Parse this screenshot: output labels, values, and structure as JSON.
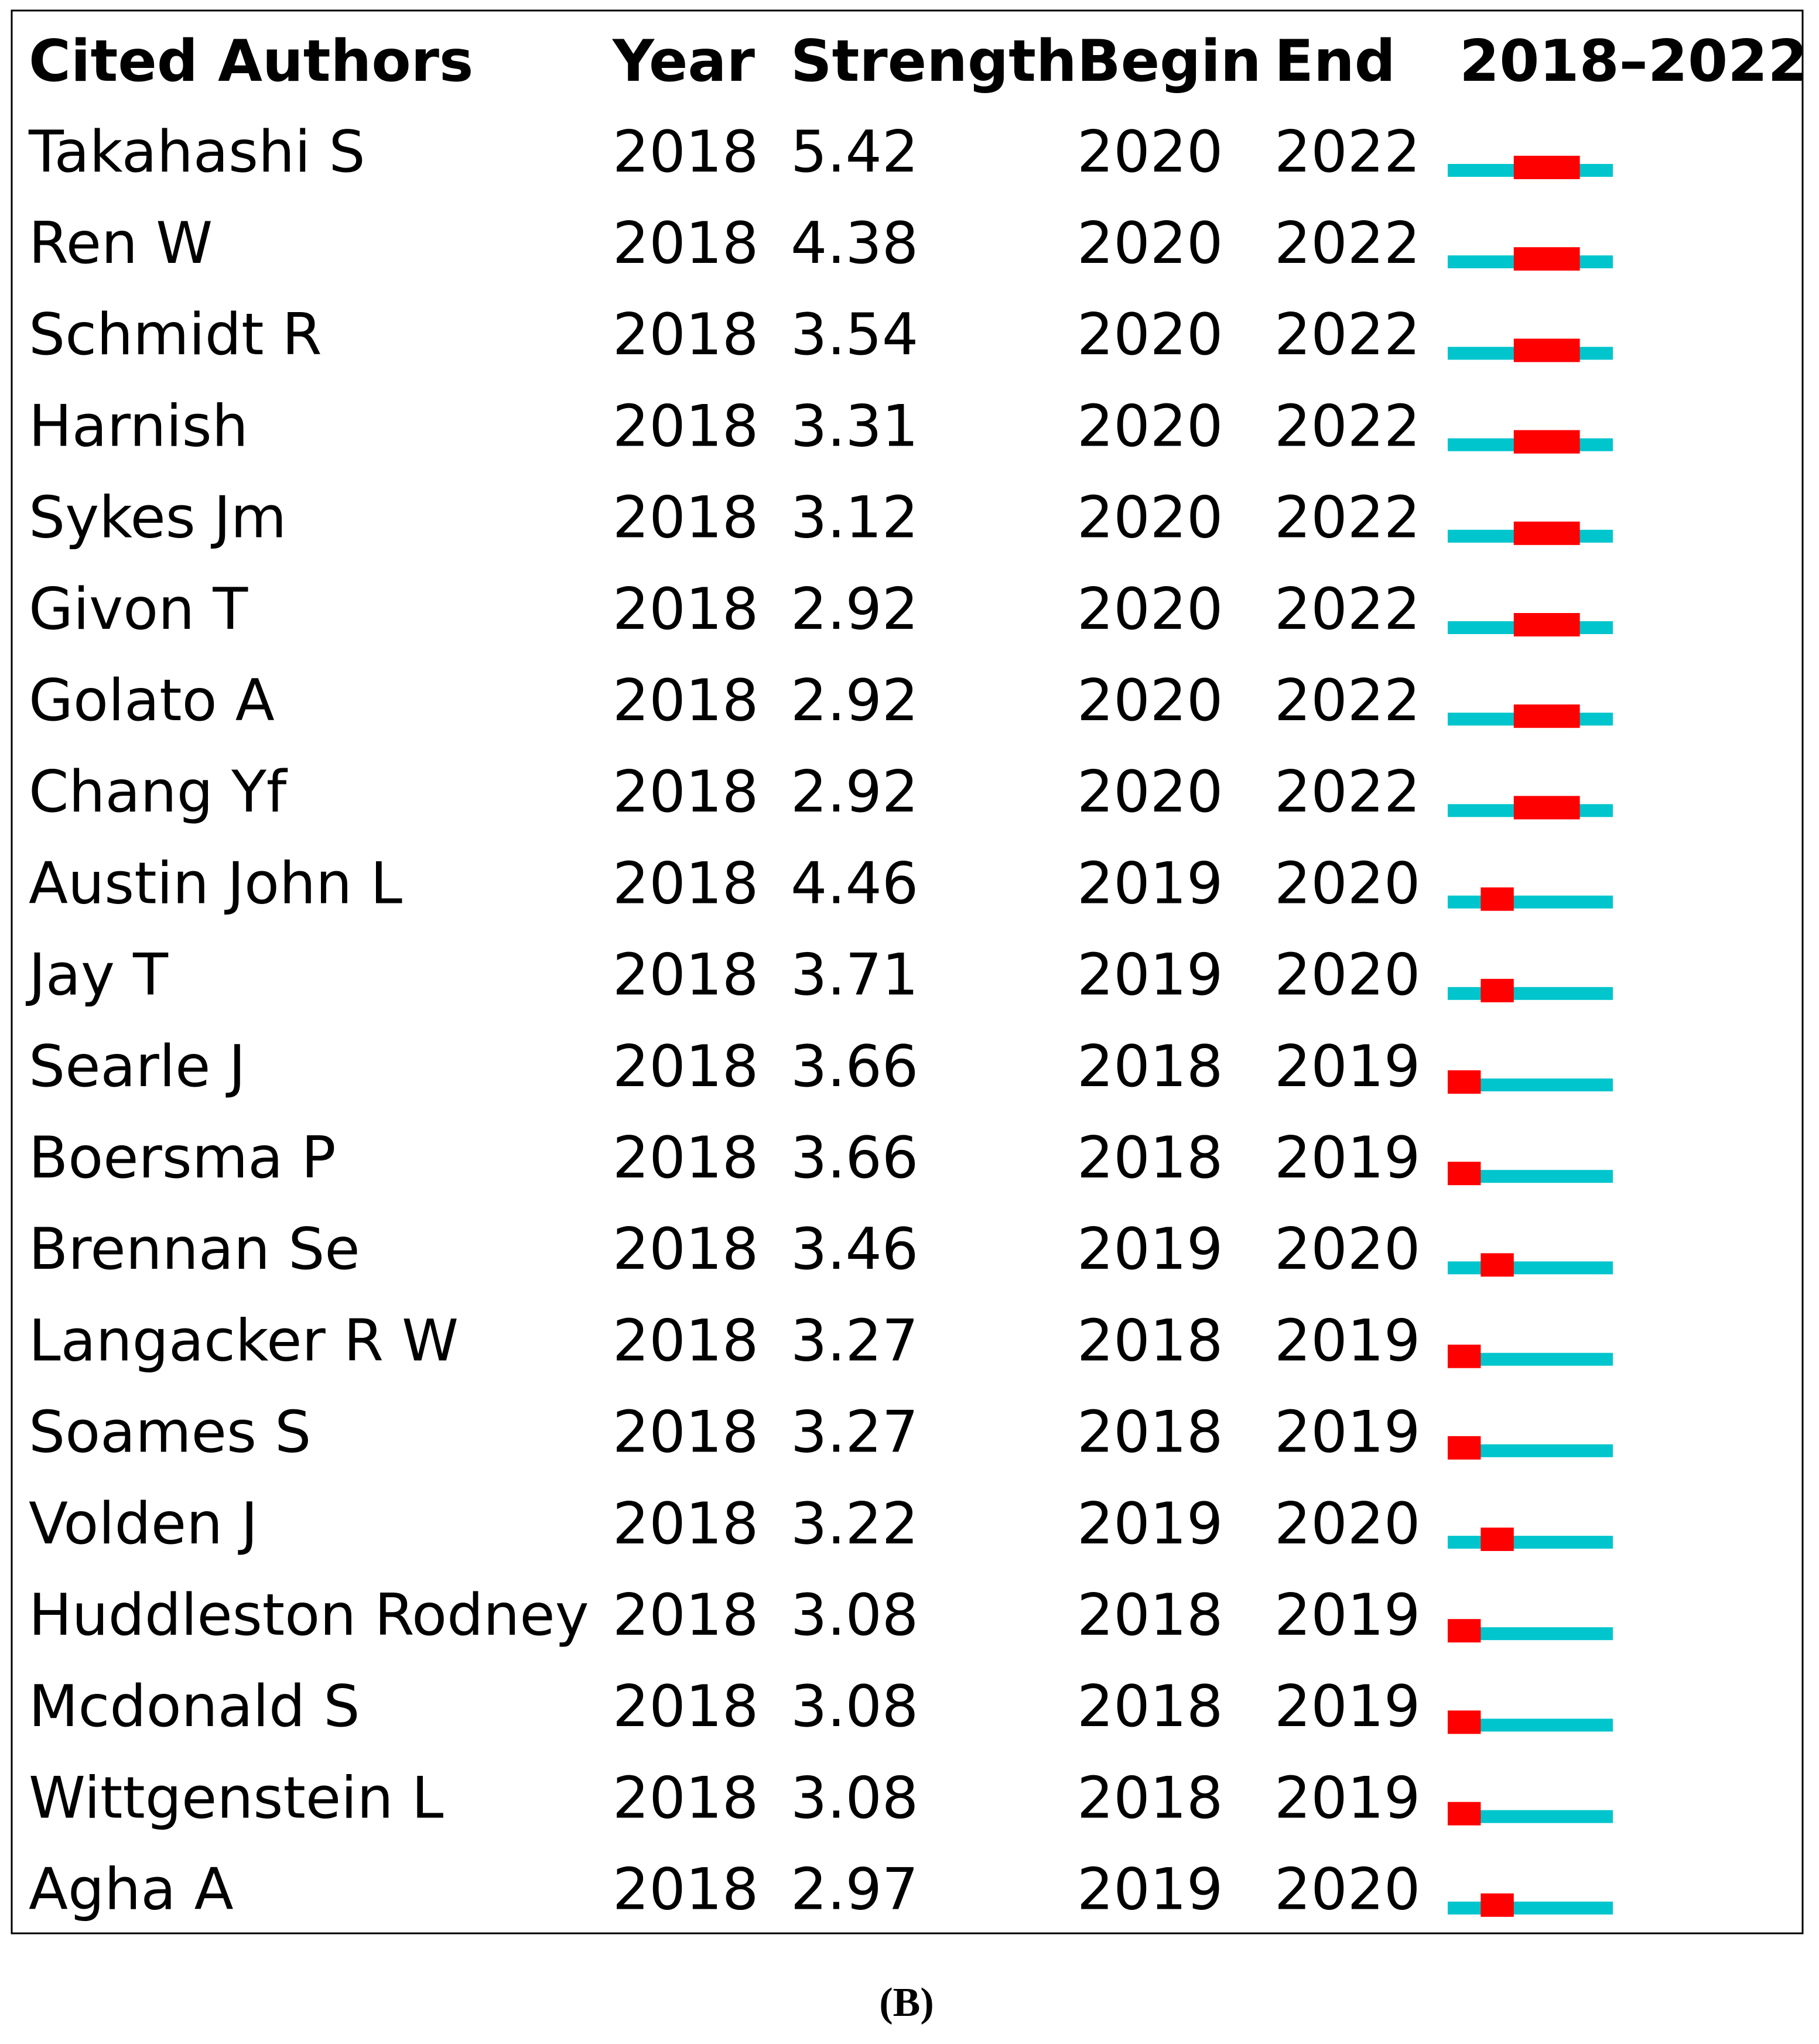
{
  "table": {
    "columns": [
      "Cited Authors",
      "Year",
      "Strength",
      "Begin",
      "End",
      "2018–2022"
    ],
    "rows": [
      [
        "Takahashi S",
        2018,
        5.42,
        2020,
        2022
      ],
      [
        "Ren W",
        2018,
        4.38,
        2020,
        2022
      ],
      [
        "Schmidt R",
        2018,
        3.54,
        2020,
        2022
      ],
      [
        "Harnish",
        2018,
        3.31,
        2020,
        2022
      ],
      [
        "Sykes Jm",
        2018,
        3.12,
        2020,
        2022
      ],
      [
        "Givon T",
        2018,
        2.92,
        2020,
        2022
      ],
      [
        "Golato A",
        2018,
        2.92,
        2020,
        2022
      ],
      [
        "Chang Yf",
        2018,
        2.92,
        2020,
        2022
      ],
      [
        "Austin John L",
        2018,
        4.46,
        2019,
        2020
      ],
      [
        "Jay T",
        2018,
        3.71,
        2019,
        2020
      ],
      [
        "Searle J",
        2018,
        3.66,
        2018,
        2019
      ],
      [
        "Boersma P",
        2018,
        3.66,
        2018,
        2019
      ],
      [
        "Brennan Se",
        2018,
        3.46,
        2019,
        2020
      ],
      [
        "Langacker R W",
        2018,
        3.27,
        2018,
        2019
      ],
      [
        "Soames S",
        2018,
        3.27,
        2018,
        2019
      ],
      [
        "Volden J",
        2018,
        3.22,
        2019,
        2020
      ],
      [
        "Huddleston Rodney",
        2018,
        3.08,
        2018,
        2019
      ],
      [
        "Mcdonald S",
        2018,
        3.08,
        2018,
        2019
      ],
      [
        "Wittgenstein L",
        2018,
        3.08,
        2018,
        2019
      ],
      [
        "Agha A",
        2018,
        2.97,
        2019,
        2020
      ]
    ]
  },
  "caption": "(B)"
}
